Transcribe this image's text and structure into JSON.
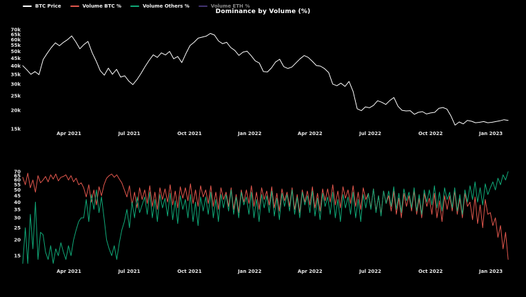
{
  "title": "Dominance by Volume (%)",
  "colors": {
    "background": "#000000",
    "axis_text": "#e8e8e8",
    "btc_price": "#ffffff",
    "volume_btc": "#e2574d",
    "volume_others": "#10a978",
    "volume_eth": "#7a5fd0"
  },
  "legend": {
    "items": [
      {
        "label": "BTC Price",
        "color": "#ffffff",
        "active": true
      },
      {
        "label": "Volume BTC %",
        "color": "#e2574d",
        "active": true
      },
      {
        "label": "Volume Others %",
        "color": "#10a978",
        "active": true
      },
      {
        "label": "Volume ETH %",
        "color": "#7a5fd0",
        "active": false
      }
    ]
  },
  "chart_data": [
    {
      "type": "line",
      "name": "btc-price-panel",
      "title": "",
      "xlabel": "",
      "ylabel": "",
      "yscale": "log",
      "ylim": [
        15,
        70
      ],
      "grid": false,
      "y_ticks": [
        {
          "label": "70k",
          "value": 70
        },
        {
          "label": "65k",
          "value": 65
        },
        {
          "label": "60k",
          "value": 60
        },
        {
          "label": "55k",
          "value": 55
        },
        {
          "label": "50k",
          "value": 50
        },
        {
          "label": "45k",
          "value": 45
        },
        {
          "label": "40k",
          "value": 40
        },
        {
          "label": "35k",
          "value": 35
        },
        {
          "label": "30k",
          "value": 30
        },
        {
          "label": "25k",
          "value": 25
        },
        {
          "label": "20k",
          "value": 20
        },
        {
          "label": "15k",
          "value": 15
        }
      ],
      "x_ticks": [
        {
          "label": "Apr 2021",
          "month": 2
        },
        {
          "label": "Jul 2021",
          "month": 5
        },
        {
          "label": "Oct 2021",
          "month": 8
        },
        {
          "label": "Jan 2022",
          "month": 11
        },
        {
          "label": "Apr 2022",
          "month": 14
        },
        {
          "label": "Jul 2022",
          "month": 17
        },
        {
          "label": "Oct 2022",
          "month": 20
        },
        {
          "label": "Jan 2023",
          "month": 23
        }
      ],
      "x_range_months": [
        -0.3,
        23.86
      ],
      "series": [
        {
          "name": "BTC Price",
          "unit": "thousand USD",
          "color": "#ffffff",
          "values": [
            40,
            37.5,
            35,
            36.5,
            34.8,
            44,
            48.5,
            53,
            57,
            54.5,
            57.5,
            60,
            63.5,
            58,
            52,
            55.5,
            58.3,
            49,
            43,
            37,
            34.5,
            38.5,
            35,
            37.8,
            33.5,
            34.2,
            31.5,
            29.8,
            32.2,
            35.5,
            39.5,
            43.5,
            47.3,
            45.5,
            48.8,
            47.2,
            49.9,
            44.5,
            46.1,
            42,
            48.2,
            54.7,
            57.5,
            61.3,
            62.3,
            63.3,
            66,
            64.3,
            58.7,
            56.3,
            57.5,
            53,
            50.7,
            46.9,
            49.4,
            50.1,
            46.7,
            43.1,
            41.7,
            36.5,
            36.3,
            38.7,
            42.4,
            44.2,
            39.4,
            38.3,
            39.2,
            41.8,
            44.5,
            46.8,
            45.5,
            42.8,
            40.1,
            39.7,
            38.2,
            36,
            30.1,
            29.3,
            30.5,
            29,
            31.3,
            26.8,
            20.5,
            19.9,
            21.1,
            20.8,
            21.6,
            23.2,
            22.7,
            21.9,
            23.3,
            24.4,
            21.3,
            20,
            19.8,
            19.9,
            18.8,
            19.4,
            19.6,
            18.9,
            19.2,
            19.4,
            20.6,
            20.9,
            20.4,
            18.3,
            15.9,
            16.7,
            16.2,
            17.1,
            16.9,
            16.5,
            16.6,
            16.8,
            16.5,
            16.6,
            16.8,
            17,
            17.3,
            17.1
          ]
        }
      ]
    },
    {
      "type": "line",
      "name": "volume-dominance-panel",
      "title": "",
      "xlabel": "",
      "ylabel": "",
      "yscale": "log",
      "ylim": [
        15,
        70
      ],
      "grid": false,
      "y_ticks": [
        {
          "label": "70",
          "value": 70
        },
        {
          "label": "65",
          "value": 65
        },
        {
          "label": "60",
          "value": 60
        },
        {
          "label": "55",
          "value": 55
        },
        {
          "label": "50",
          "value": 50
        },
        {
          "label": "45",
          "value": 45
        },
        {
          "label": "40",
          "value": 40
        },
        {
          "label": "35",
          "value": 35
        },
        {
          "label": "30",
          "value": 30
        },
        {
          "label": "25",
          "value": 25
        },
        {
          "label": "20",
          "value": 20
        },
        {
          "label": "15",
          "value": 15
        }
      ],
      "x_ticks": [
        {
          "label": "Apr 2021",
          "month": 2
        },
        {
          "label": "Jul 2021",
          "month": 5
        },
        {
          "label": "Oct 2021",
          "month": 8
        },
        {
          "label": "Jan 2022",
          "month": 11
        },
        {
          "label": "Apr 2022",
          "month": 14
        },
        {
          "label": "Jul 2022",
          "month": 17
        },
        {
          "label": "Oct 2022",
          "month": 20
        },
        {
          "label": "Jan 2023",
          "month": 23
        }
      ],
      "x_range_months": [
        -0.3,
        23.86
      ],
      "series": [
        {
          "name": "Volume BTC %",
          "unit": "%",
          "color": "#e2574d",
          "values": [
            63,
            55,
            68,
            52,
            60,
            48,
            65,
            57,
            60,
            64,
            58,
            66,
            61,
            67,
            59,
            63,
            64,
            66,
            60,
            65,
            58,
            62,
            55,
            57,
            52,
            44,
            55,
            40,
            50,
            38,
            53,
            45,
            55,
            62,
            65,
            67,
            63,
            66,
            61,
            57,
            50,
            44,
            54,
            38,
            48,
            36,
            52,
            42,
            50,
            39,
            54,
            37,
            48,
            35,
            52,
            42,
            51,
            40,
            55,
            38,
            49,
            36,
            53,
            43,
            52,
            41,
            56,
            39,
            50,
            37,
            54,
            44,
            50,
            39,
            54,
            37,
            48,
            35,
            52,
            42,
            48,
            37,
            52,
            35,
            46,
            33,
            50,
            40,
            50,
            39,
            54,
            37,
            48,
            35,
            52,
            42,
            49,
            38,
            53,
            36,
            47,
            34,
            51,
            41,
            48,
            37,
            52,
            35,
            46,
            33,
            50,
            40,
            49,
            38,
            53,
            36,
            47,
            34,
            51,
            41,
            51,
            40,
            55,
            38,
            49,
            36,
            53,
            43,
            50,
            39,
            54,
            37,
            48,
            35,
            52,
            42,
            47,
            36,
            51,
            34,
            45,
            32,
            49,
            39,
            45,
            34,
            49,
            32,
            43,
            30,
            47,
            37,
            45,
            34,
            49,
            32,
            43,
            30,
            47,
            37,
            43,
            32,
            47,
            30,
            41,
            28,
            45,
            35,
            45,
            34,
            49,
            32,
            43,
            30,
            47,
            37,
            40,
            29,
            44,
            27,
            38,
            25,
            42,
            32,
            33,
            26,
            30,
            21,
            26,
            17,
            23,
            14
          ]
        },
        {
          "name": "Volume Others %",
          "unit": "%",
          "color": "#10a978",
          "values": [
            13,
            25,
            11,
            32,
            17,
            40,
            14,
            23,
            22,
            16,
            14,
            18,
            13,
            17,
            15,
            19,
            16,
            14,
            18,
            15,
            20,
            24,
            28,
            30,
            30,
            42,
            28,
            46,
            35,
            50,
            33,
            44,
            30,
            20,
            17,
            15,
            18,
            14,
            19,
            24,
            28,
            35,
            25,
            40,
            30,
            44,
            33,
            38,
            44,
            32,
            48,
            30,
            42,
            28,
            46,
            36,
            43,
            31,
            47,
            29,
            41,
            27,
            45,
            35,
            42,
            30,
            46,
            28,
            40,
            26,
            44,
            34,
            44,
            32,
            48,
            30,
            42,
            28,
            46,
            36,
            46,
            34,
            50,
            32,
            44,
            30,
            48,
            38,
            44,
            32,
            48,
            30,
            42,
            28,
            46,
            36,
            45,
            33,
            49,
            31,
            43,
            29,
            47,
            37,
            46,
            34,
            50,
            32,
            44,
            30,
            48,
            38,
            45,
            33,
            49,
            31,
            43,
            29,
            47,
            37,
            44,
            32,
            48,
            30,
            42,
            28,
            46,
            36,
            44,
            32,
            48,
            30,
            42,
            28,
            46,
            36,
            47,
            35,
            51,
            33,
            45,
            31,
            49,
            39,
            49,
            37,
            53,
            35,
            47,
            33,
            51,
            41,
            48,
            36,
            52,
            34,
            46,
            32,
            50,
            40,
            50,
            38,
            54,
            36,
            48,
            34,
            52,
            42,
            48,
            36,
            52,
            34,
            46,
            32,
            50,
            40,
            54,
            42,
            58,
            40,
            52,
            38,
            56,
            46,
            52,
            58,
            50,
            62,
            55,
            66,
            60,
            70
          ]
        }
      ]
    }
  ]
}
